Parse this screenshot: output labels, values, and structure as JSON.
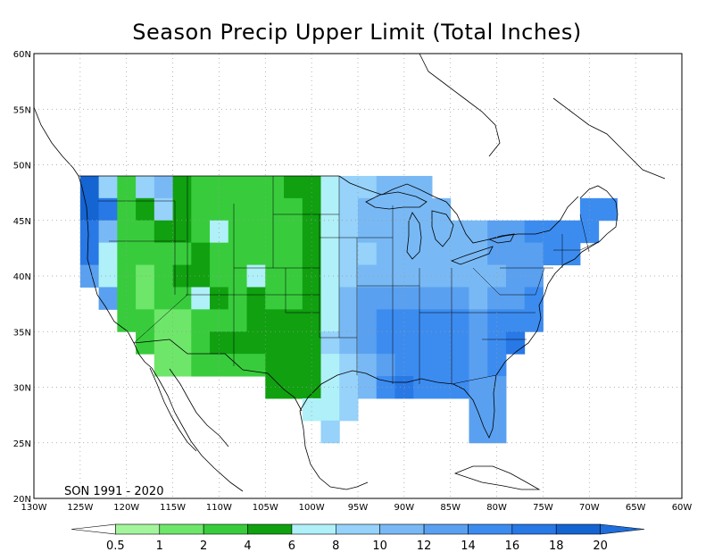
{
  "title": "Season Precip Upper Limit (Total Inches)",
  "period_label": "SON 1991 - 2020",
  "lon_ticks": [
    "130W",
    "125W",
    "120W",
    "115W",
    "110W",
    "105W",
    "100W",
    "95W",
    "90W",
    "85W",
    "80W",
    "75W",
    "70W",
    "65W",
    "60W"
  ],
  "lat_ticks": [
    "60N",
    "55N",
    "50N",
    "45N",
    "40N",
    "35N",
    "30N",
    "25N",
    "20N"
  ],
  "extent": {
    "lon_min": -130,
    "lon_max": -60,
    "lat_min": 20,
    "lat_max": 60
  },
  "colorbar": {
    "labels": [
      "0.5",
      "1",
      "2",
      "4",
      "6",
      "8",
      "10",
      "12",
      "14",
      "16",
      "18",
      "20"
    ],
    "colors": [
      "#ffffff",
      "#a3f59c",
      "#6ee66a",
      "#38cc3c",
      "#10a010",
      "#b0f0f8",
      "#96d2fa",
      "#78b9f5",
      "#5aa0f0",
      "#3c8cf0",
      "#2878e6",
      "#1464d2",
      "#1e6edc"
    ]
  },
  "grid_cells": [
    {
      "lon": -124,
      "lat": 48,
      "level": 11
    },
    {
      "lon": -122,
      "lat": 48,
      "level": 6
    },
    {
      "lon": -120,
      "lat": 48,
      "level": 3
    },
    {
      "lon": -118,
      "lat": 48,
      "level": 6
    },
    {
      "lon": -116,
      "lat": 48,
      "level": 7
    },
    {
      "lon": -114,
      "lat": 48,
      "level": 4
    },
    {
      "lon": -112,
      "lat": 48,
      "level": 3
    },
    {
      "lon": -110,
      "lat": 48,
      "level": 3
    },
    {
      "lon": -108,
      "lat": 48,
      "level": 3
    },
    {
      "lon": -106,
      "lat": 48,
      "level": 3
    },
    {
      "lon": -104,
      "lat": 48,
      "level": 3
    },
    {
      "lon": -102,
      "lat": 48,
      "level": 4
    },
    {
      "lon": -100,
      "lat": 48,
      "level": 4
    },
    {
      "lon": -98,
      "lat": 48,
      "level": 5
    },
    {
      "lon": -96,
      "lat": 48,
      "level": 6
    },
    {
      "lon": -94,
      "lat": 48,
      "level": 6
    },
    {
      "lon": -92,
      "lat": 48,
      "level": 7
    },
    {
      "lon": -90,
      "lat": 48,
      "level": 7
    },
    {
      "lon": -88,
      "lat": 48,
      "level": 7
    },
    {
      "lon": -124,
      "lat": 46,
      "level": 11
    },
    {
      "lon": -122,
      "lat": 46,
      "level": 10
    },
    {
      "lon": -120,
      "lat": 46,
      "level": 3
    },
    {
      "lon": -118,
      "lat": 46,
      "level": 4
    },
    {
      "lon": -116,
      "lat": 46,
      "level": 6
    },
    {
      "lon": -114,
      "lat": 46,
      "level": 4
    },
    {
      "lon": -112,
      "lat": 46,
      "level": 3
    },
    {
      "lon": -110,
      "lat": 46,
      "level": 3
    },
    {
      "lon": -108,
      "lat": 46,
      "level": 3
    },
    {
      "lon": -106,
      "lat": 46,
      "level": 3
    },
    {
      "lon": -104,
      "lat": 46,
      "level": 3
    },
    {
      "lon": -102,
      "lat": 46,
      "level": 3
    },
    {
      "lon": -100,
      "lat": 46,
      "level": 4
    },
    {
      "lon": -98,
      "lat": 46,
      "level": 5
    },
    {
      "lon": -96,
      "lat": 46,
      "level": 6
    },
    {
      "lon": -94,
      "lat": 46,
      "level": 7
    },
    {
      "lon": -92,
      "lat": 46,
      "level": 7
    },
    {
      "lon": -90,
      "lat": 46,
      "level": 7
    },
    {
      "lon": -88,
      "lat": 46,
      "level": 7
    },
    {
      "lon": -86,
      "lat": 46,
      "level": 7
    },
    {
      "lon": -70,
      "lat": 46,
      "level": 9
    },
    {
      "lon": -68,
      "lat": 46,
      "level": 9
    },
    {
      "lon": -124,
      "lat": 44,
      "level": 10
    },
    {
      "lon": -122,
      "lat": 44,
      "level": 7
    },
    {
      "lon": -120,
      "lat": 44,
      "level": 3
    },
    {
      "lon": -118,
      "lat": 44,
      "level": 3
    },
    {
      "lon": -116,
      "lat": 44,
      "level": 4
    },
    {
      "lon": -114,
      "lat": 44,
      "level": 4
    },
    {
      "lon": -112,
      "lat": 44,
      "level": 3
    },
    {
      "lon": -110,
      "lat": 44,
      "level": 5
    },
    {
      "lon": -108,
      "lat": 44,
      "level": 3
    },
    {
      "lon": -106,
      "lat": 44,
      "level": 3
    },
    {
      "lon": -104,
      "lat": 44,
      "level": 3
    },
    {
      "lon": -102,
      "lat": 44,
      "level": 3
    },
    {
      "lon": -100,
      "lat": 44,
      "level": 4
    },
    {
      "lon": -98,
      "lat": 44,
      "level": 5
    },
    {
      "lon": -96,
      "lat": 44,
      "level": 6
    },
    {
      "lon": -94,
      "lat": 44,
      "level": 7
    },
    {
      "lon": -92,
      "lat": 44,
      "level": 7
    },
    {
      "lon": -90,
      "lat": 44,
      "level": 7
    },
    {
      "lon": -88,
      "lat": 44,
      "level": 7
    },
    {
      "lon": -86,
      "lat": 44,
      "level": 7
    },
    {
      "lon": -84,
      "lat": 44,
      "level": 7
    },
    {
      "lon": -82,
      "lat": 44,
      "level": 7
    },
    {
      "lon": -80,
      "lat": 44,
      "level": 8
    },
    {
      "lon": -78,
      "lat": 44,
      "level": 8
    },
    {
      "lon": -76,
      "lat": 44,
      "level": 9
    },
    {
      "lon": -74,
      "lat": 44,
      "level": 9
    },
    {
      "lon": -72,
      "lat": 44,
      "level": 9
    },
    {
      "lon": -70,
      "lat": 44,
      "level": 9
    },
    {
      "lon": -124,
      "lat": 42,
      "level": 10
    },
    {
      "lon": -122,
      "lat": 42,
      "level": 5
    },
    {
      "lon": -120,
      "lat": 42,
      "level": 3
    },
    {
      "lon": -118,
      "lat": 42,
      "level": 3
    },
    {
      "lon": -116,
      "lat": 42,
      "level": 3
    },
    {
      "lon": -114,
      "lat": 42,
      "level": 3
    },
    {
      "lon": -112,
      "lat": 42,
      "level": 4
    },
    {
      "lon": -110,
      "lat": 42,
      "level": 3
    },
    {
      "lon": -108,
      "lat": 42,
      "level": 3
    },
    {
      "lon": -106,
      "lat": 42,
      "level": 3
    },
    {
      "lon": -104,
      "lat": 42,
      "level": 3
    },
    {
      "lon": -102,
      "lat": 42,
      "level": 3
    },
    {
      "lon": -100,
      "lat": 42,
      "level": 4
    },
    {
      "lon": -98,
      "lat": 42,
      "level": 5
    },
    {
      "lon": -96,
      "lat": 42,
      "level": 6
    },
    {
      "lon": -94,
      "lat": 42,
      "level": 6
    },
    {
      "lon": -92,
      "lat": 42,
      "level": 7
    },
    {
      "lon": -90,
      "lat": 42,
      "level": 7
    },
    {
      "lon": -88,
      "lat": 42,
      "level": 7
    },
    {
      "lon": -86,
      "lat": 42,
      "level": 7
    },
    {
      "lon": -84,
      "lat": 42,
      "level": 7
    },
    {
      "lon": -82,
      "lat": 42,
      "level": 7
    },
    {
      "lon": -80,
      "lat": 42,
      "level": 8
    },
    {
      "lon": -78,
      "lat": 42,
      "level": 8
    },
    {
      "lon": -76,
      "lat": 42,
      "level": 8
    },
    {
      "lon": -74,
      "lat": 42,
      "level": 9
    },
    {
      "lon": -72,
      "lat": 42,
      "level": 9
    },
    {
      "lon": -124,
      "lat": 40,
      "level": 8
    },
    {
      "lon": -122,
      "lat": 40,
      "level": 5
    },
    {
      "lon": -120,
      "lat": 40,
      "level": 3
    },
    {
      "lon": -118,
      "lat": 40,
      "level": 2
    },
    {
      "lon": -116,
      "lat": 40,
      "level": 3
    },
    {
      "lon": -114,
      "lat": 40,
      "level": 4
    },
    {
      "lon": -112,
      "lat": 40,
      "level": 4
    },
    {
      "lon": -110,
      "lat": 40,
      "level": 3
    },
    {
      "lon": -108,
      "lat": 40,
      "level": 3
    },
    {
      "lon": -106,
      "lat": 40,
      "level": 5
    },
    {
      "lon": -104,
      "lat": 40,
      "level": 3
    },
    {
      "lon": -102,
      "lat": 40,
      "level": 3
    },
    {
      "lon": -100,
      "lat": 40,
      "level": 4
    },
    {
      "lon": -98,
      "lat": 40,
      "level": 5
    },
    {
      "lon": -96,
      "lat": 40,
      "level": 6
    },
    {
      "lon": -94,
      "lat": 40,
      "level": 7
    },
    {
      "lon": -92,
      "lat": 40,
      "level": 7
    },
    {
      "lon": -90,
      "lat": 40,
      "level": 7
    },
    {
      "lon": -88,
      "lat": 40,
      "level": 7
    },
    {
      "lon": -86,
      "lat": 40,
      "level": 7
    },
    {
      "lon": -84,
      "lat": 40,
      "level": 7
    },
    {
      "lon": -82,
      "lat": 40,
      "level": 7
    },
    {
      "lon": -80,
      "lat": 40,
      "level": 7
    },
    {
      "lon": -78,
      "lat": 40,
      "level": 8
    },
    {
      "lon": -76,
      "lat": 40,
      "level": 8
    },
    {
      "lon": -122,
      "lat": 38,
      "level": 8
    },
    {
      "lon": -120,
      "lat": 38,
      "level": 3
    },
    {
      "lon": -118,
      "lat": 38,
      "level": 2
    },
    {
      "lon": -116,
      "lat": 38,
      "level": 3
    },
    {
      "lon": -114,
      "lat": 38,
      "level": 3
    },
    {
      "lon": -112,
      "lat": 38,
      "level": 5
    },
    {
      "lon": -110,
      "lat": 38,
      "level": 4
    },
    {
      "lon": -108,
      "lat": 38,
      "level": 3
    },
    {
      "lon": -106,
      "lat": 38,
      "level": 4
    },
    {
      "lon": -104,
      "lat": 38,
      "level": 3
    },
    {
      "lon": -102,
      "lat": 38,
      "level": 3
    },
    {
      "lon": -100,
      "lat": 38,
      "level": 4
    },
    {
      "lon": -98,
      "lat": 38,
      "level": 5
    },
    {
      "lon": -96,
      "lat": 38,
      "level": 7
    },
    {
      "lon": -94,
      "lat": 38,
      "level": 8
    },
    {
      "lon": -92,
      "lat": 38,
      "level": 8
    },
    {
      "lon": -90,
      "lat": 38,
      "level": 8
    },
    {
      "lon": -88,
      "lat": 38,
      "level": 8
    },
    {
      "lon": -86,
      "lat": 38,
      "level": 8
    },
    {
      "lon": -84,
      "lat": 38,
      "level": 8
    },
    {
      "lon": -82,
      "lat": 38,
      "level": 7
    },
    {
      "lon": -80,
      "lat": 38,
      "level": 8
    },
    {
      "lon": -78,
      "lat": 38,
      "level": 8
    },
    {
      "lon": -76,
      "lat": 38,
      "level": 9
    },
    {
      "lon": -120,
      "lat": 36,
      "level": 3
    },
    {
      "lon": -118,
      "lat": 36,
      "level": 3
    },
    {
      "lon": -116,
      "lat": 36,
      "level": 2
    },
    {
      "lon": -114,
      "lat": 36,
      "level": 2
    },
    {
      "lon": -112,
      "lat": 36,
      "level": 3
    },
    {
      "lon": -110,
      "lat": 36,
      "level": 3
    },
    {
      "lon": -108,
      "lat": 36,
      "level": 3
    },
    {
      "lon": -106,
      "lat": 36,
      "level": 4
    },
    {
      "lon": -104,
      "lat": 36,
      "level": 4
    },
    {
      "lon": -102,
      "lat": 36,
      "level": 4
    },
    {
      "lon": -100,
      "lat": 36,
      "level": 4
    },
    {
      "lon": -98,
      "lat": 36,
      "level": 5
    },
    {
      "lon": -96,
      "lat": 36,
      "level": 7
    },
    {
      "lon": -94,
      "lat": 36,
      "level": 8
    },
    {
      "lon": -92,
      "lat": 36,
      "level": 9
    },
    {
      "lon": -90,
      "lat": 36,
      "level": 9
    },
    {
      "lon": -88,
      "lat": 36,
      "level": 9
    },
    {
      "lon": -86,
      "lat": 36,
      "level": 9
    },
    {
      "lon": -84,
      "lat": 36,
      "level": 9
    },
    {
      "lon": -82,
      "lat": 36,
      "level": 8
    },
    {
      "lon": -80,
      "lat": 36,
      "level": 9
    },
    {
      "lon": -78,
      "lat": 36,
      "level": 9
    },
    {
      "lon": -76,
      "lat": 36,
      "level": 9
    },
    {
      "lon": -118,
      "lat": 34,
      "level": 3
    },
    {
      "lon": -116,
      "lat": 34,
      "level": 2
    },
    {
      "lon": -114,
      "lat": 34,
      "level": 2
    },
    {
      "lon": -112,
      "lat": 34,
      "level": 3
    },
    {
      "lon": -110,
      "lat": 34,
      "level": 4
    },
    {
      "lon": -108,
      "lat": 34,
      "level": 4
    },
    {
      "lon": -106,
      "lat": 34,
      "level": 4
    },
    {
      "lon": -104,
      "lat": 34,
      "level": 4
    },
    {
      "lon": -102,
      "lat": 34,
      "level": 4
    },
    {
      "lon": -100,
      "lat": 34,
      "level": 4
    },
    {
      "lon": -98,
      "lat": 34,
      "level": 6
    },
    {
      "lon": -96,
      "lat": 34,
      "level": 7
    },
    {
      "lon": -94,
      "lat": 34,
      "level": 8
    },
    {
      "lon": -92,
      "lat": 34,
      "level": 9
    },
    {
      "lon": -90,
      "lat": 34,
      "level": 9
    },
    {
      "lon": -88,
      "lat": 34,
      "level": 9
    },
    {
      "lon": -86,
      "lat": 34,
      "level": 9
    },
    {
      "lon": -84,
      "lat": 34,
      "level": 9
    },
    {
      "lon": -82,
      "lat": 34,
      "level": 8
    },
    {
      "lon": -80,
      "lat": 34,
      "level": 9
    },
    {
      "lon": -78,
      "lat": 34,
      "level": 10
    },
    {
      "lon": -116,
      "lat": 32,
      "level": 2
    },
    {
      "lon": -114,
      "lat": 32,
      "level": 2
    },
    {
      "lon": -112,
      "lat": 32,
      "level": 3
    },
    {
      "lon": -110,
      "lat": 32,
      "level": 3
    },
    {
      "lon": -108,
      "lat": 32,
      "level": 3
    },
    {
      "lon": -106,
      "lat": 32,
      "level": 3
    },
    {
      "lon": -104,
      "lat": 32,
      "level": 4
    },
    {
      "lon": -102,
      "lat": 32,
      "level": 4
    },
    {
      "lon": -100,
      "lat": 32,
      "level": 4
    },
    {
      "lon": -98,
      "lat": 32,
      "level": 5
    },
    {
      "lon": -96,
      "lat": 32,
      "level": 6
    },
    {
      "lon": -94,
      "lat": 32,
      "level": 7
    },
    {
      "lon": -92,
      "lat": 32,
      "level": 8
    },
    {
      "lon": -90,
      "lat": 32,
      "level": 9
    },
    {
      "lon": -88,
      "lat": 32,
      "level": 9
    },
    {
      "lon": -86,
      "lat": 32,
      "level": 9
    },
    {
      "lon": -84,
      "lat": 32,
      "level": 9
    },
    {
      "lon": -82,
      "lat": 32,
      "level": 8
    },
    {
      "lon": -80,
      "lat": 32,
      "level": 9
    },
    {
      "lon": -104,
      "lat": 30,
      "level": 4
    },
    {
      "lon": -102,
      "lat": 30,
      "level": 4
    },
    {
      "lon": -100,
      "lat": 30,
      "level": 4
    },
    {
      "lon": -98,
      "lat": 30,
      "level": 5
    },
    {
      "lon": -96,
      "lat": 30,
      "level": 6
    },
    {
      "lon": -94,
      "lat": 30,
      "level": 7
    },
    {
      "lon": -92,
      "lat": 30,
      "level": 9
    },
    {
      "lon": -90,
      "lat": 30,
      "level": 10
    },
    {
      "lon": -88,
      "lat": 30,
      "level": 9
    },
    {
      "lon": -86,
      "lat": 30,
      "level": 9
    },
    {
      "lon": -84,
      "lat": 30,
      "level": 9
    },
    {
      "lon": -82,
      "lat": 30,
      "level": 8
    },
    {
      "lon": -80,
      "lat": 30,
      "level": 8
    },
    {
      "lon": -100,
      "lat": 28,
      "level": 5
    },
    {
      "lon": -98,
      "lat": 28,
      "level": 5
    },
    {
      "lon": -96,
      "lat": 28,
      "level": 6
    },
    {
      "lon": -82,
      "lat": 28,
      "level": 8
    },
    {
      "lon": -80,
      "lat": 28,
      "level": 8
    },
    {
      "lon": -98,
      "lat": 26,
      "level": 6
    },
    {
      "lon": -82,
      "lat": 26,
      "level": 8
    },
    {
      "lon": -80,
      "lat": 26,
      "level": 8
    }
  ]
}
